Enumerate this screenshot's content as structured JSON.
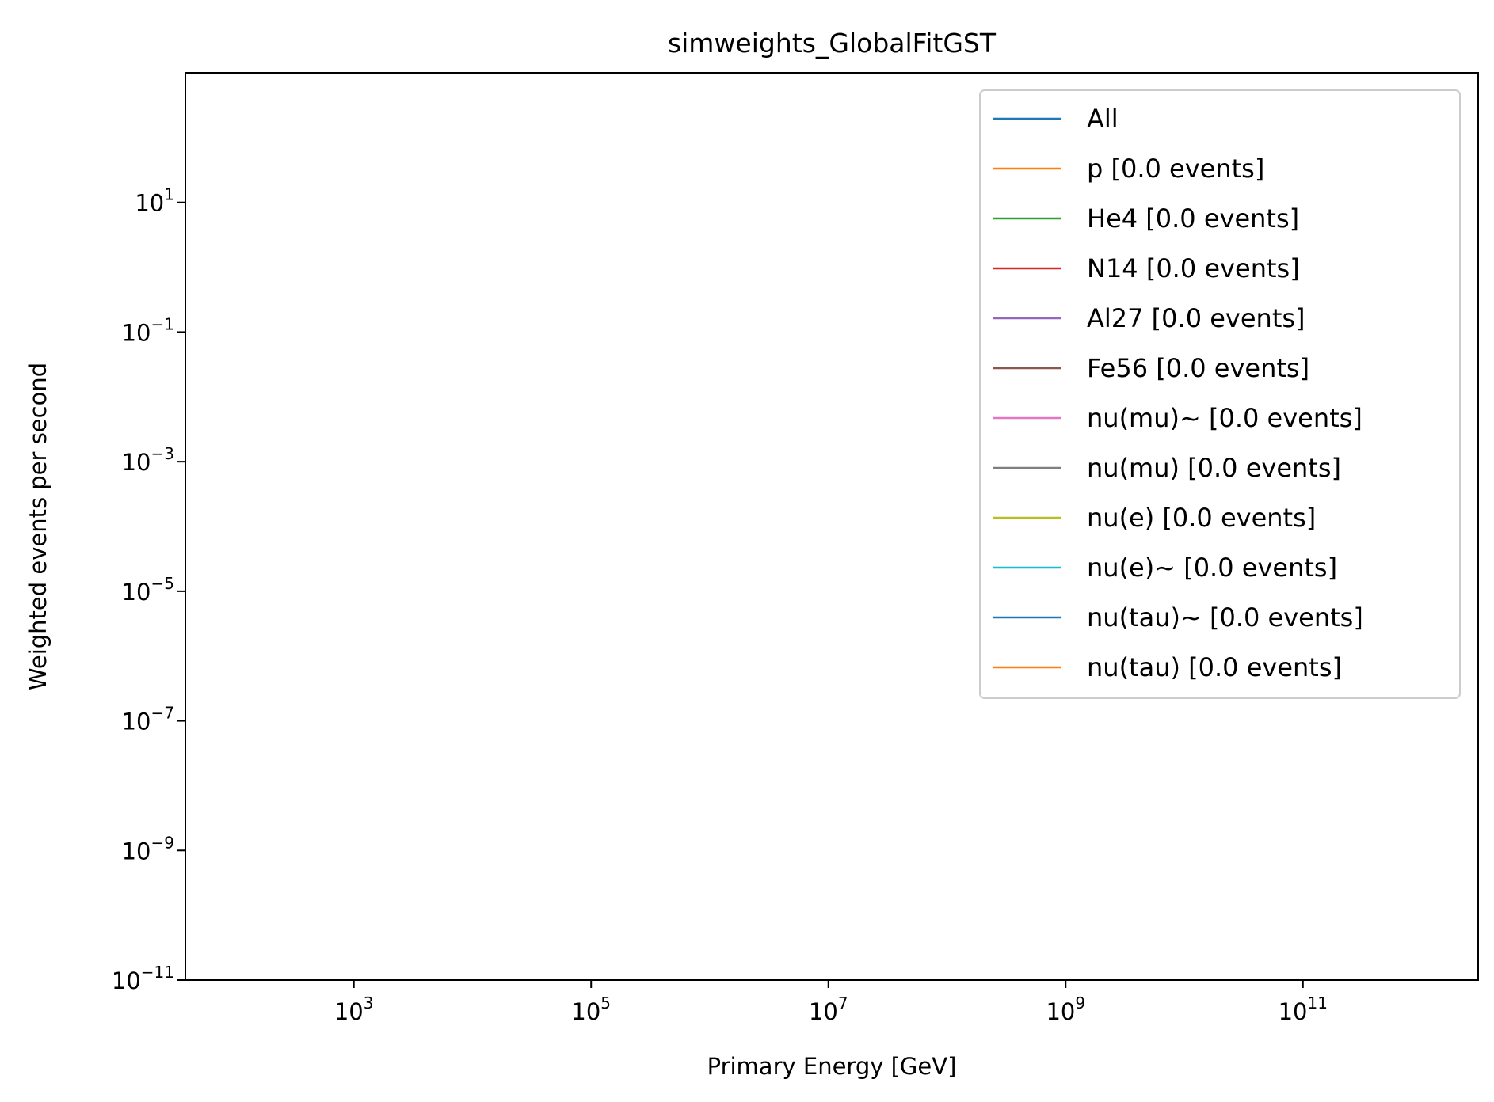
{
  "chart_data": {
    "type": "line",
    "title": "simweights_GlobalFitGST",
    "xlabel": "Primary Energy [GeV]",
    "ylabel": "Weighted events per second",
    "xscale": "log",
    "yscale": "log",
    "xlim": [
      38,
      3000000000000
    ],
    "ylim": [
      1e-11,
      1000
    ],
    "grid": false,
    "legend_position": "upper-right",
    "x_ticks": [
      {
        "value": 1000,
        "mant": "10",
        "exp": "3"
      },
      {
        "value": 100000,
        "mant": "10",
        "exp": "5"
      },
      {
        "value": 10000000,
        "mant": "10",
        "exp": "7"
      },
      {
        "value": 1000000000,
        "mant": "10",
        "exp": "9"
      },
      {
        "value": 100000000000,
        "mant": "10",
        "exp": "11"
      }
    ],
    "y_ticks": [
      {
        "value": 1e-11,
        "mant": "10",
        "exp": "−11"
      },
      {
        "value": 1e-09,
        "mant": "10",
        "exp": "−9"
      },
      {
        "value": 1e-07,
        "mant": "10",
        "exp": "−7"
      },
      {
        "value": 1e-05,
        "mant": "10",
        "exp": "−5"
      },
      {
        "value": 0.001,
        "mant": "10",
        "exp": "−3"
      },
      {
        "value": 0.1,
        "mant": "10",
        "exp": "−1"
      },
      {
        "value": 10,
        "mant": "10",
        "exp": "1"
      }
    ],
    "series": [
      {
        "name": "All",
        "color": "#1f77b4",
        "points": []
      },
      {
        "name": "p [0.0 events]",
        "color": "#ff7f0e",
        "points": []
      },
      {
        "name": "He4 [0.0 events]",
        "color": "#2ca02c",
        "points": []
      },
      {
        "name": "N14 [0.0 events]",
        "color": "#d62728",
        "points": []
      },
      {
        "name": "Al27 [0.0 events]",
        "color": "#9467bd",
        "points": []
      },
      {
        "name": "Fe56 [0.0 events]",
        "color": "#8c564b",
        "points": []
      },
      {
        "name": "nu(mu)~ [0.0 events]",
        "color": "#e377c2",
        "points": []
      },
      {
        "name": "nu(mu) [0.0 events]",
        "color": "#7f7f7f",
        "points": []
      },
      {
        "name": "nu(e) [0.0 events]",
        "color": "#bcbd22",
        "points": []
      },
      {
        "name": "nu(e)~ [0.0 events]",
        "color": "#17becf",
        "points": []
      },
      {
        "name": "nu(tau)~ [0.0 events]",
        "color": "#1f77b4",
        "points": []
      },
      {
        "name": "nu(tau) [0.0 events]",
        "color": "#ff7f0e",
        "points": []
      }
    ]
  }
}
